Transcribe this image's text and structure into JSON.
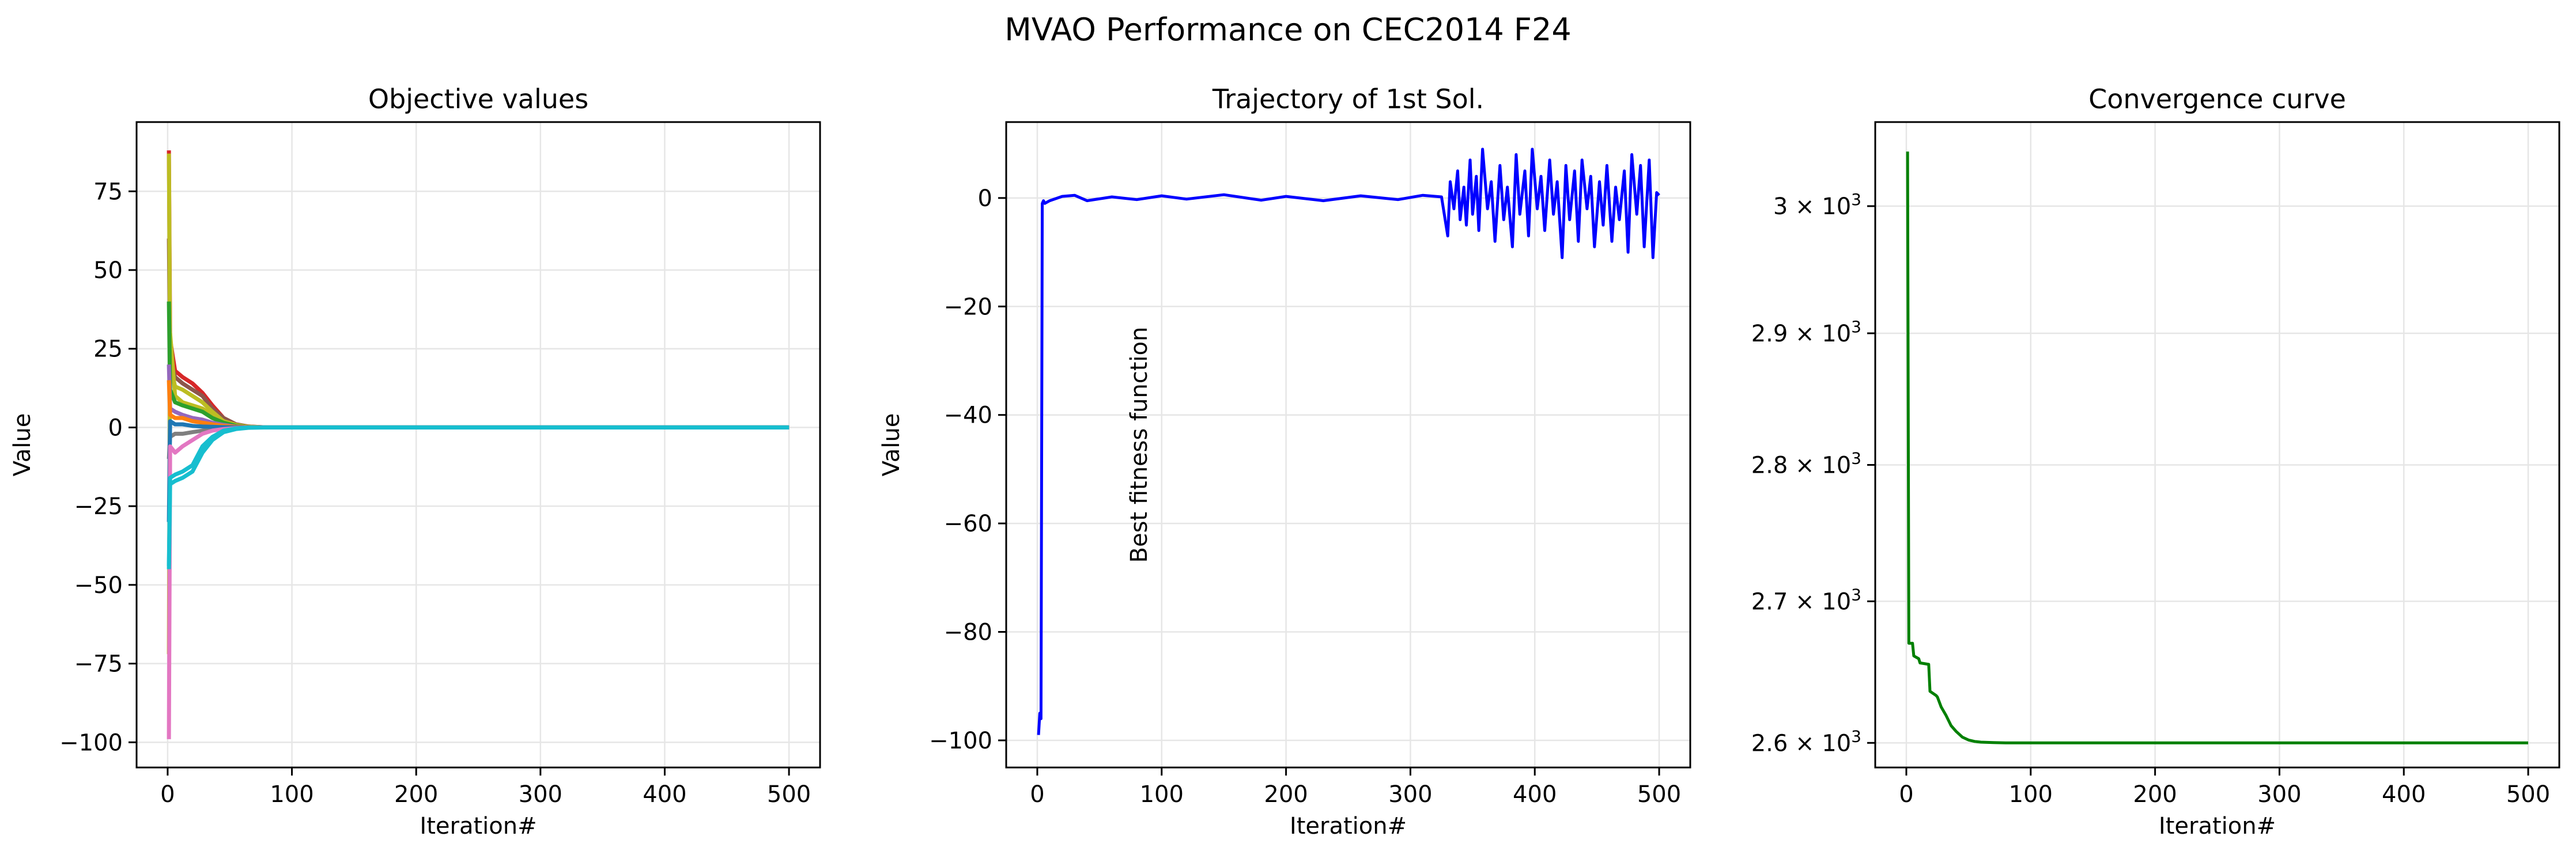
{
  "figure": {
    "suptitle": "MVAO Performance on CEC2014 F24"
  },
  "chart_data": [
    {
      "type": "line",
      "title": "Objective values",
      "xlabel": "Iteration#",
      "ylabel": "Value",
      "xlim": [
        -25,
        525
      ],
      "ylim": [
        -108,
        97
      ],
      "xticks": [
        0,
        100,
        200,
        300,
        400,
        500
      ],
      "yticks": [
        -100,
        -75,
        -50,
        -25,
        0,
        25,
        50,
        75
      ],
      "ytick_labels": [
        "−100",
        "−75",
        "−50",
        "−25",
        "0",
        "25",
        "50",
        "75"
      ],
      "grid": true,
      "legend": "none",
      "series_note": "many overlapping per-dimension trajectories converging to 0",
      "series": [
        {
          "color": "#d62728",
          "x": [
            1,
            2,
            6,
            12,
            20,
            28,
            36,
            45,
            55,
            65,
            80,
            500
          ],
          "y": [
            88,
            28,
            18,
            16,
            14,
            11,
            7,
            3,
            1,
            0.3,
            0,
            0
          ]
        },
        {
          "color": "#8c564b",
          "x": [
            1,
            2,
            6,
            12,
            20,
            28,
            36,
            45,
            55,
            65,
            80,
            500
          ],
          "y": [
            60,
            22,
            16,
            14,
            12,
            10,
            6,
            3,
            1,
            0.3,
            0,
            0
          ]
        },
        {
          "color": "#bcbd22",
          "x": [
            1,
            2,
            6,
            12,
            20,
            28,
            36,
            45,
            55,
            65,
            80,
            500
          ],
          "y": [
            87,
            20,
            13,
            12,
            10,
            8,
            5,
            2,
            0.8,
            0.2,
            0,
            0
          ]
        },
        {
          "color": "#bcbd22",
          "x": [
            1,
            2,
            6,
            12,
            20,
            28,
            36,
            45,
            55,
            65,
            80,
            500
          ],
          "y": [
            -72,
            30,
            10,
            8,
            7,
            6,
            4,
            2,
            0.5,
            0.2,
            0,
            0
          ]
        },
        {
          "color": "#2ca02c",
          "x": [
            1,
            2,
            6,
            12,
            20,
            28,
            36,
            45,
            55,
            65,
            80,
            500
          ],
          "y": [
            40,
            12,
            8,
            7,
            6,
            5,
            3,
            1.5,
            0.5,
            0.1,
            0,
            0
          ]
        },
        {
          "color": "#9467bd",
          "x": [
            1,
            2,
            6,
            12,
            20,
            28,
            36,
            45,
            55,
            65,
            80,
            500
          ],
          "y": [
            20,
            6,
            5,
            4,
            3,
            2.5,
            1.5,
            0.8,
            0.3,
            0.1,
            0,
            0
          ]
        },
        {
          "color": "#ff7f0e",
          "x": [
            1,
            2,
            6,
            12,
            20,
            28,
            36,
            45,
            55,
            65,
            80,
            500
          ],
          "y": [
            15,
            4,
            3,
            3,
            2,
            1.5,
            1,
            0.5,
            0.2,
            0.1,
            0,
            0
          ]
        },
        {
          "color": "#7f7f7f",
          "x": [
            1,
            2,
            6,
            12,
            20,
            28,
            36,
            45,
            55,
            65,
            80,
            500
          ],
          "y": [
            -10,
            -3,
            -2,
            -2,
            -1.5,
            -1,
            -0.6,
            -0.3,
            -0.1,
            0,
            0,
            0
          ]
        },
        {
          "color": "#1f77b4",
          "x": [
            1,
            2,
            6,
            12,
            20,
            28,
            36,
            45,
            55,
            65,
            80,
            500
          ],
          "y": [
            -30,
            2,
            1,
            1,
            0.5,
            0.3,
            0.2,
            0.1,
            0,
            0,
            0,
            0
          ]
        },
        {
          "color": "#e377c2",
          "x": [
            1,
            2,
            6,
            12,
            20,
            28,
            36,
            45,
            55,
            65,
            80,
            500
          ],
          "y": [
            -99,
            -6,
            -8,
            -6,
            -4,
            -2,
            -1,
            -0.5,
            -0.2,
            0,
            0,
            0
          ]
        },
        {
          "color": "#17becf",
          "x": [
            1,
            2,
            6,
            12,
            20,
            28,
            36,
            45,
            55,
            65,
            80,
            500
          ],
          "y": [
            -45,
            -18,
            -17,
            -16,
            -14,
            -8,
            -4,
            -1.5,
            -0.5,
            -0.1,
            0,
            0
          ]
        },
        {
          "color": "#17becf",
          "x": [
            1,
            2,
            6,
            12,
            20,
            28,
            36,
            45,
            55,
            65,
            80,
            500
          ],
          "y": [
            -44,
            -16,
            -15,
            -14,
            -12,
            -6,
            -3,
            -1,
            -0.3,
            0,
            0,
            0
          ]
        }
      ]
    },
    {
      "type": "line",
      "title": "Trajectory of 1st Sol.",
      "xlabel": "Iteration#",
      "ylabel": "Value",
      "xlim": [
        -25,
        525
      ],
      "ylim": [
        -105,
        14
      ],
      "xticks": [
        0,
        100,
        200,
        300,
        400,
        500
      ],
      "yticks": [
        -100,
        -80,
        -60,
        -40,
        -20,
        0
      ],
      "ytick_labels": [
        "−100",
        "−80",
        "−60",
        "−40",
        "−20",
        "0"
      ],
      "grid": true,
      "legend": "none",
      "series": [
        {
          "color": "#0000ff",
          "x": [
            1,
            2,
            3,
            4,
            5,
            6,
            10,
            20,
            30,
            40,
            60,
            80,
            100,
            120,
            150,
            180,
            200,
            230,
            260,
            290,
            310,
            325,
            330,
            332,
            335,
            338,
            340,
            343,
            345,
            348,
            350,
            353,
            355,
            358,
            362,
            365,
            368,
            372,
            375,
            378,
            382,
            385,
            388,
            392,
            395,
            398,
            402,
            405,
            408,
            412,
            415,
            418,
            422,
            425,
            428,
            432,
            435,
            438,
            442,
            445,
            448,
            452,
            455,
            458,
            462,
            465,
            468,
            472,
            475,
            478,
            482,
            485,
            488,
            492,
            495,
            498,
            500
          ],
          "y": [
            -99,
            -95,
            -96,
            -1,
            -0.5,
            -1,
            -0.5,
            0.3,
            0.5,
            -0.5,
            0.2,
            -0.3,
            0.4,
            -0.2,
            0.6,
            -0.4,
            0.3,
            -0.5,
            0.4,
            -0.3,
            0.5,
            0.2,
            -7,
            3,
            -2,
            5,
            -4,
            2,
            -5,
            7,
            -3,
            4,
            -6,
            9,
            -2,
            3,
            -8,
            6,
            -4,
            2,
            -9,
            8,
            -3,
            5,
            -7,
            9,
            -2,
            4,
            -6,
            7,
            -3,
            3,
            -11,
            6,
            -4,
            5,
            -8,
            7,
            -2,
            4,
            -9,
            3,
            -5,
            6,
            -8,
            2,
            -4,
            5,
            -10,
            8,
            -3,
            6,
            -9,
            7,
            -11,
            1,
            0.5
          ]
        }
      ]
    },
    {
      "type": "line",
      "title": "Convergence curve",
      "xlabel": "Iteration#",
      "ylabel": "Best fitness function",
      "yscale": "log",
      "xlim": [
        -25,
        525
      ],
      "ylim": [
        2583,
        3068
      ],
      "xticks": [
        0,
        100,
        200,
        300,
        400,
        500
      ],
      "yticks": [
        2600,
        2700,
        2800,
        2900,
        3000
      ],
      "ytick_labels": [
        {
          "mantissa": "2.6",
          "base": "10",
          "exp": "3"
        },
        {
          "mantissa": "2.7",
          "base": "10",
          "exp": "3"
        },
        {
          "mantissa": "2.8",
          "base": "10",
          "exp": "3"
        },
        {
          "mantissa": "2.9",
          "base": "10",
          "exp": "3"
        },
        {
          "mantissa": "3",
          "base": "10",
          "exp": "3"
        }
      ],
      "grid": true,
      "legend": "none",
      "series": [
        {
          "color": "#008000",
          "x": [
            1,
            2,
            5,
            6,
            10,
            11,
            18,
            19,
            24,
            25,
            28,
            32,
            36,
            40,
            45,
            50,
            55,
            60,
            70,
            80,
            100,
            200,
            300,
            400,
            500
          ],
          "y": [
            3044,
            2670,
            2670,
            2661,
            2659,
            2656,
            2655,
            2636,
            2633,
            2632,
            2625,
            2619,
            2612,
            2608,
            2604,
            2602,
            2601,
            2600.5,
            2600.2,
            2600,
            2600,
            2600,
            2600,
            2600,
            2600
          ]
        }
      ]
    }
  ]
}
